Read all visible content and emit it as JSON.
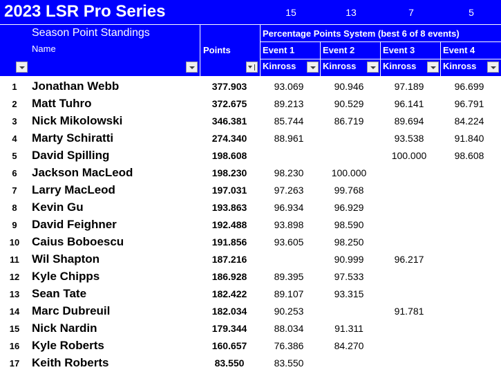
{
  "header": {
    "title": "2023 LSR Pro Series",
    "event_counts": [
      "15",
      "13",
      "7",
      "5"
    ],
    "subtitle": "Season Point Standings",
    "system_label": "Percentage Points System (best 6 of 8 events)",
    "name_col": "Name",
    "points_col": "Points",
    "events": [
      {
        "label": "Event 1",
        "venue": "Kinross"
      },
      {
        "label": "Event 2",
        "venue": "Kinross"
      },
      {
        "label": "Event 3",
        "venue": "Kinross"
      },
      {
        "label": "Event 4",
        "venue": "Kinross"
      }
    ]
  },
  "colors": {
    "header_bg": "#0000ff",
    "header_text": "#ffffff"
  },
  "standings": [
    {
      "rank": "1",
      "name": "Jonathan Webb",
      "points": "377.903",
      "e1": "93.069",
      "e2": "90.946",
      "e3": "97.189",
      "e4": "96.699"
    },
    {
      "rank": "2",
      "name": "Matt Tuhro",
      "points": "372.675",
      "e1": "89.213",
      "e2": "90.529",
      "e3": "96.141",
      "e4": "96.791"
    },
    {
      "rank": "3",
      "name": "Nick Mikolowski",
      "points": "346.381",
      "e1": "85.744",
      "e2": "86.719",
      "e3": "89.694",
      "e4": "84.224"
    },
    {
      "rank": "4",
      "name": "Marty Schiratti",
      "points": "274.340",
      "e1": "88.961",
      "e2": "",
      "e3": "93.538",
      "e4": "91.840"
    },
    {
      "rank": "5",
      "name": "David Spilling",
      "points": "198.608",
      "e1": "",
      "e2": "",
      "e3": "100.000",
      "e4": "98.608"
    },
    {
      "rank": "6",
      "name": "Jackson MacLeod",
      "points": "198.230",
      "e1": "98.230",
      "e2": "100.000",
      "e3": "",
      "e4": ""
    },
    {
      "rank": "7",
      "name": "Larry MacLeod",
      "points": "197.031",
      "e1": "97.263",
      "e2": "99.768",
      "e3": "",
      "e4": ""
    },
    {
      "rank": "8",
      "name": "Kevin Gu",
      "points": "193.863",
      "e1": "96.934",
      "e2": "96.929",
      "e3": "",
      "e4": ""
    },
    {
      "rank": "9",
      "name": "David Feighner",
      "points": "192.488",
      "e1": "93.898",
      "e2": "98.590",
      "e3": "",
      "e4": ""
    },
    {
      "rank": "10",
      "name": "Caius Boboescu",
      "points": "191.856",
      "e1": "93.605",
      "e2": "98.250",
      "e3": "",
      "e4": ""
    },
    {
      "rank": "11",
      "name": "Wil Shapton",
      "points": "187.216",
      "e1": "",
      "e2": "90.999",
      "e3": "96.217",
      "e4": ""
    },
    {
      "rank": "12",
      "name": "Kyle Chipps",
      "points": "186.928",
      "e1": "89.395",
      "e2": "97.533",
      "e3": "",
      "e4": ""
    },
    {
      "rank": "13",
      "name": "Sean Tate",
      "points": "182.422",
      "e1": "89.107",
      "e2": "93.315",
      "e3": "",
      "e4": ""
    },
    {
      "rank": "14",
      "name": "Marc Dubreuil",
      "points": "182.034",
      "e1": "90.253",
      "e2": "",
      "e3": "91.781",
      "e4": ""
    },
    {
      "rank": "15",
      "name": "Nick Nardin",
      "points": "179.344",
      "e1": "88.034",
      "e2": "91.311",
      "e3": "",
      "e4": ""
    },
    {
      "rank": "16",
      "name": "Kyle Roberts",
      "points": "160.657",
      "e1": "76.386",
      "e2": "84.270",
      "e3": "",
      "e4": ""
    },
    {
      "rank": "17",
      "name": "Keith Roberts",
      "points": "83.550",
      "e1": "83.550",
      "e2": "",
      "e3": "",
      "e4": ""
    }
  ]
}
